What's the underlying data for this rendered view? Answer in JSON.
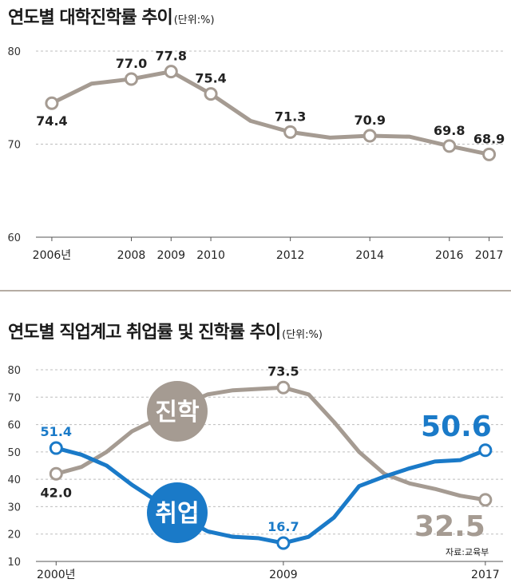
{
  "chart_data": [
    {
      "type": "line",
      "title": "연도별 대학진학률 추이",
      "unit": "(단위:%)",
      "x": [
        2006,
        2007,
        2008,
        2009,
        2010,
        2011,
        2012,
        2013,
        2014,
        2015,
        2016,
        2017
      ],
      "x_tick_labels": [
        "2006년",
        "2008",
        "2009",
        "2010",
        "2012",
        "2014",
        "2016",
        "2017"
      ],
      "x_ticks": [
        2006,
        2008,
        2009,
        2010,
        2012,
        2014,
        2016,
        2017
      ],
      "series": [
        {
          "values": [
            74.4,
            76.5,
            77.0,
            77.8,
            75.4,
            72.5,
            71.3,
            70.7,
            70.9,
            70.8,
            69.8,
            68.9
          ],
          "labeled_points": [
            {
              "x": 2006,
              "label": "74.4"
            },
            {
              "x": 2008,
              "label": "77.0"
            },
            {
              "x": 2009,
              "label": "77.8"
            },
            {
              "x": 2010,
              "label": "75.4"
            },
            {
              "x": 2012,
              "label": "71.3"
            },
            {
              "x": 2014,
              "label": "70.9"
            },
            {
              "x": 2016,
              "label": "69.8"
            },
            {
              "x": 2017,
              "label": "68.9"
            }
          ],
          "color": "#a59b92"
        }
      ],
      "y_ticks": [
        60,
        70,
        80
      ],
      "ylim": [
        60,
        80
      ],
      "xlim": [
        2005.6,
        2017.35
      ],
      "grid": true
    },
    {
      "type": "line",
      "title": "연도별 직업계고 취업률 및 진학률 추이",
      "unit": "(단위:%)",
      "x": [
        2000,
        2001,
        2002,
        2003,
        2004,
        2005,
        2006,
        2007,
        2008,
        2009,
        2010,
        2011,
        2012,
        2013,
        2014,
        2015,
        2016,
        2017
      ],
      "x_tick_labels": [
        "2000년",
        "2009",
        "2017"
      ],
      "x_ticks": [
        2000,
        2009,
        2017
      ],
      "series": [
        {
          "name": "진학",
          "values": [
            42.0,
            44.5,
            50.0,
            57.5,
            62.0,
            67.0,
            71.0,
            72.5,
            73.0,
            73.5,
            71.0,
            61.0,
            50.0,
            42.0,
            38.5,
            36.5,
            34.0,
            32.5
          ],
          "labeled_points": [
            {
              "x": 2000,
              "label": "42.0"
            },
            {
              "x": 2009,
              "label": "73.5"
            },
            {
              "x": 2017,
              "label": "32.5"
            }
          ],
          "color": "#a59b92"
        },
        {
          "name": "취업",
          "values": [
            51.4,
            49.0,
            45.0,
            38.0,
            32.0,
            26.0,
            21.0,
            19.0,
            18.5,
            16.7,
            19.0,
            26.0,
            37.5,
            41.0,
            44.0,
            46.5,
            47.0,
            50.6
          ],
          "labeled_points": [
            {
              "x": 2000,
              "label": "51.4"
            },
            {
              "x": 2009,
              "label": "16.7"
            },
            {
              "x": 2017,
              "label": "50.6"
            }
          ],
          "color": "#1a7ac8"
        }
      ],
      "y_ticks": [
        10,
        20,
        30,
        40,
        50,
        60,
        70,
        80
      ],
      "ylim": [
        10,
        80
      ],
      "xlim": [
        1999.2,
        2017.7
      ],
      "grid": true
    }
  ],
  "source": "자료:교육부",
  "colors": {
    "jinhak": "#a59b92",
    "chwieop": "#1a7ac8",
    "grid": "#bdbdbd",
    "axis": "#555555"
  }
}
